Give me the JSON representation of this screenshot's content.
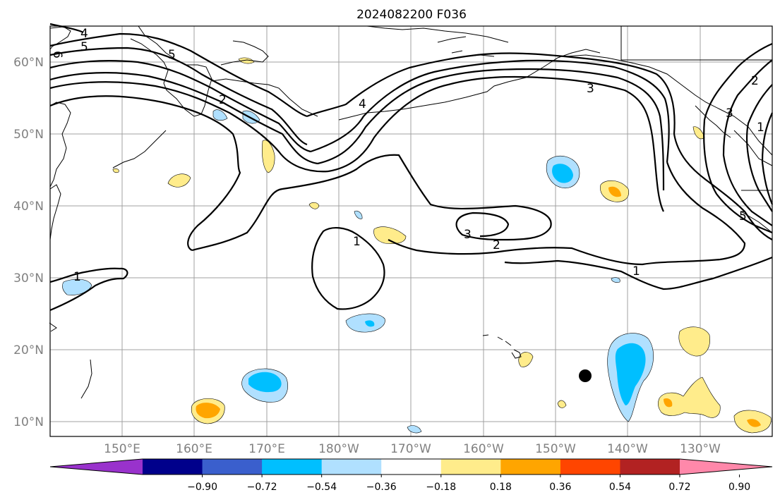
{
  "title": "2024082200 F036",
  "lat_labels": [
    "60°N",
    "50°N",
    "40°N",
    "30°N",
    "20°N",
    "10°N"
  ],
  "lon_labels": [
    "150°E",
    "160°E",
    "170°E",
    "180°W",
    "170°W",
    "160°W",
    "150°W",
    "140°W",
    "130°W"
  ],
  "colorbar": {
    "labels": [
      "−0.90",
      "−0.72",
      "−0.54",
      "−0.36",
      "−0.18",
      "0.18",
      "0.36",
      "0.54",
      "0.72",
      "0.90"
    ],
    "colors": [
      "#9932cc",
      "#00008b",
      "#3a5fcd",
      "#00bfff",
      "#b0e0ff",
      "#ffffff",
      "#ffec8b",
      "#ffa500",
      "#ff4500",
      "#b22222",
      "#ff88aa"
    ]
  },
  "contour_labels": {
    "c4": "4",
    "c5a": "5",
    "c6": "6",
    "c5b": "5",
    "c2a": "2",
    "c4b": "4",
    "c3a": "3",
    "c2b": "2",
    "c3b": "3",
    "c1a": "1",
    "c1b": "1",
    "c1c": "1",
    "c2c": "2",
    "c3c": "3",
    "c1d": "1",
    "c5c": "5"
  },
  "marker": "black-dot"
}
